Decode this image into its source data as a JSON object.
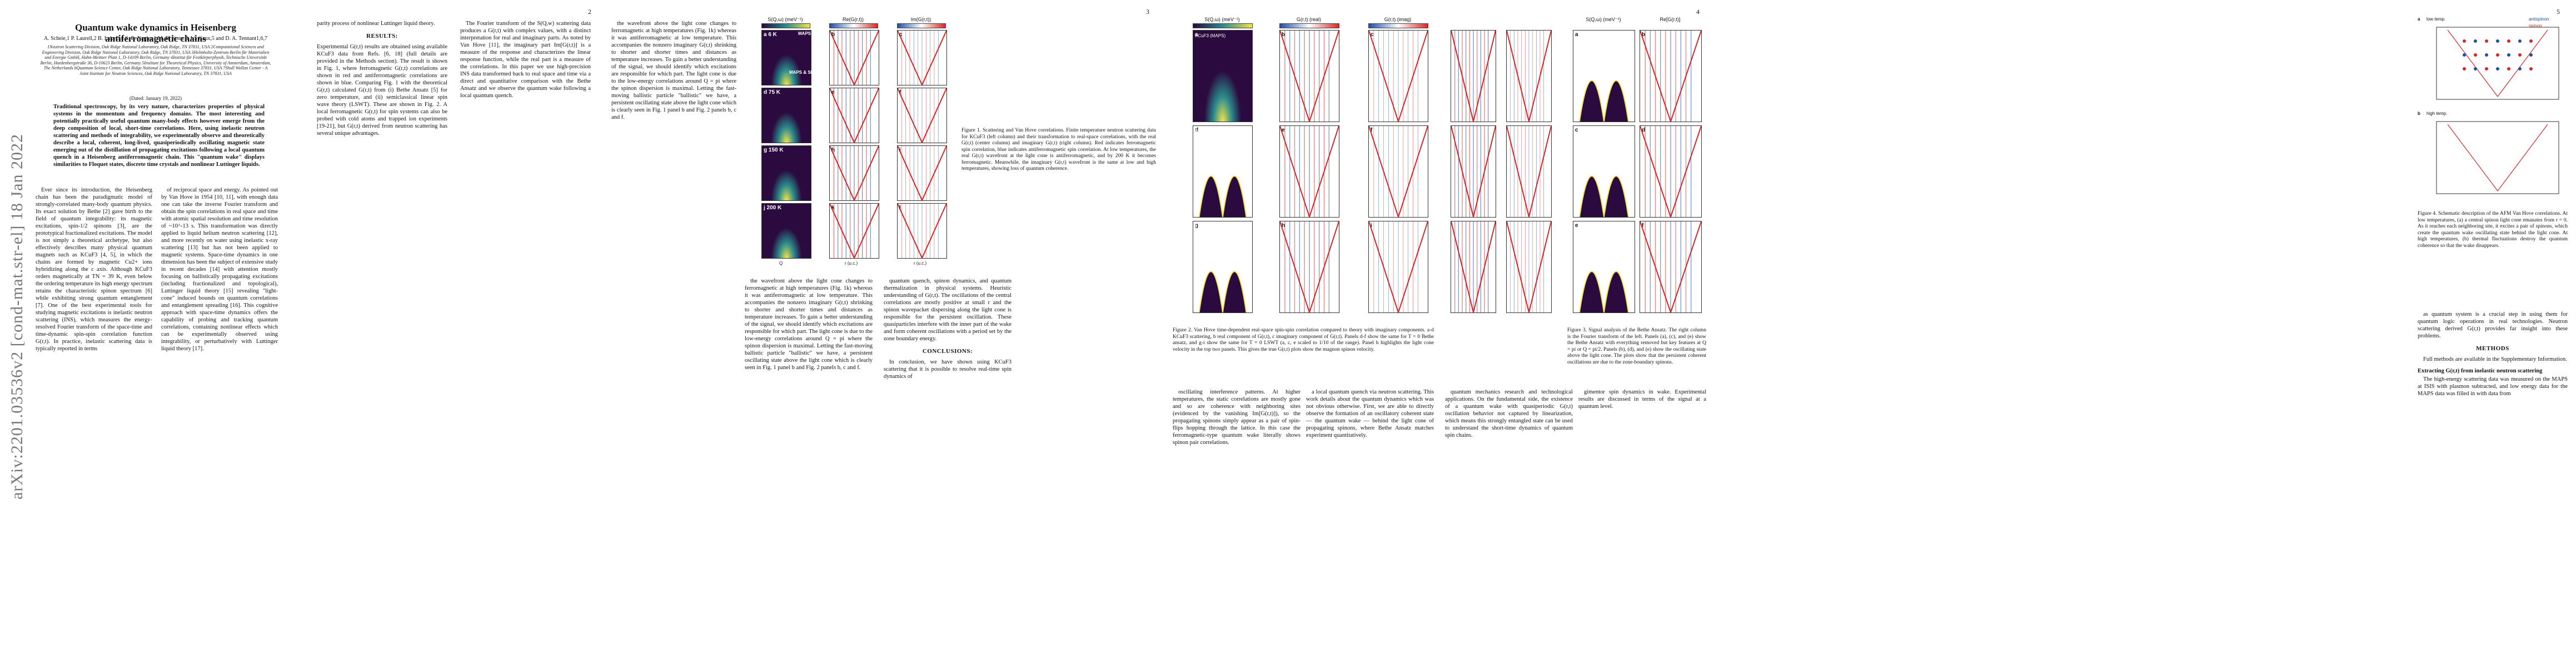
{
  "arxiv_id": "arXiv:2201.03536v2  [cond-mat.str-el]  18 Jan 2022",
  "page_numbers": [
    "2",
    "3",
    "4",
    "5"
  ],
  "title": "Quantum wake dynamics in Heisenberg antiferromagnetic chains",
  "authors": "A. Scheie,1 P. Laurell,2 B. Lake,3,4 S. E. Nagler,1 M. B. Stone,1 J-S Caux,5 and D. A. Tennant1,6,7",
  "affiliations": "1Neutron Scattering Division, Oak Ridge National Laboratory, Oak Ridge, TN 37831, USA 2Computational Sciences and Engineering Division, Oak Ridge National Laboratory, Oak Ridge, TN 37831, USA 3Helmholtz-Zentrum Berlin für Materialien und Energie GmbH, Hahn-Meitner Platz 1, D-14109 Berlin, Germany 4Institut für Festkörperphysik, Technische Universität Berlin, Hardenbergstraße 36, D-10623 Berlin, Germany 5Institute for Theoretical Physics, University of Amsterdam, Amsterdam, The Netherlands 6Quantum Science Center, Oak Ridge National Laboratory, Tennessee 37831, USA 7Shull Wollan Center - A Joint Institute for Neutron Sciences, Oak Ridge National Laboratory, TN 37831, USA",
  "dated": "(Dated: January 19, 2022)",
  "abstract": "Traditional spectroscopy, by its very nature, characterizes properties of physical systems in the momentum and frequency domains. The most interesting and potentially practically useful quantum many-body effects however emerge from the deep composition of local, short-time correlations. Here, using inelastic neutron scattering and methods of integrability, we experimentally observe and theoretically describe a local, coherent, long-lived, quasiperiodically oscillating magnetic state emerging out of the distillation of propagating excitations following a local quantum quench in a Heisenberg antiferromagnetic chain. This \"quantum wake\" displays similarities to Floquet states, discrete time crystals and nonlinear Luttinger liquids.",
  "p1_col1": "Ever since its introduction, the Heisenberg chain has been the paradigmatic model of strongly-correlated many-body quantum physics. Its exact solution by Bethe [2] gave birth to the field of quantum integrability: its magnetic excitations, spin-1/2 spinons [3], are the prototypical fractionalized excitations. The model is not simply a theoretical archetype, but also effectively describes many physical quantum magnets such as KCuF3 [4, 5], in which the chains are formed by magnetic Cu2+ ions hybridizing along the c axis. Although KCuF3 orders magnetically at TN = 39 K, even below the ordering temperature its high energy spectrum retains the characteristic spinon spectrum [6] while exhibiting strong quantum entanglement [7]. One of the best experimental tools for studying magnetic excitations is inelastic neutron scattering (INS), which measures the energy-resolved Fourier transform of the space-time and time-dynamic spin-spin correlation function G(r,t). In practice, inelastic scattering data is typically reported in terms",
  "p1_col2": "of reciprocal space and energy. As pointed out by Van Hove in 1954 [10, 11], with enough data one can take the inverse Fourier transform and obtain the spin correlations in real space and time with atomic spatial resolution and time resolution of ~10^-13 s. This transformation was directly applied to liquid helium neutron scattering [12], and more recently on water using inelastic x-ray scattering [13] but has not been applied to magnetic systems. Space-time dynamics in one dimension has been the subject of extensive study in recent decades [14] with attention mostly focusing on ballistically propagating excitations (including fractionalized and topological), Luttinger liquid theory [15] revealing \"light-cone\" induced bounds on quantum correlations and entanglement spreading [16]. This cognitive approach with space-time dynamics offers the capability of probing and tracking quantum correlations, containing nonlinear effects which can be experimentally observed using integrability, or perturbatively with Luttinger liquid theory [17].",
  "p2_col1": "parity process of nonlinear Luttinger liquid theory.",
  "p2_results": "RESULTS:",
  "p2_col1_body": "Experimental G(r,t) results are obtained using available KCuF3 data from Refs. [6, 18] (full details are provided in the Methods section). The result is shown in Fig. 1, where ferromagnetic G(r,t) correlations are shown in red and antiferromagnetic correlations are shown in blue. Comparing Fig. 1 with the theoretical G(r,t) calculated G(r,t) from (i) Bethe Ansatz [5] for zero temperature, and (ii) semiclassical linear spin wave theory (LSWT). These are shown in Fig. 2. A local ferromagnetic G(r,t) for spin systems can also be probed with cold atoms and trapped ion experiments [19-21], but G(r,t) derived from neutron scattering has several unique advantages.",
  "p2_col2_body": "The Fourier transform of the S(Q,w) scattering data produces a G(r,t) with complex values, with a distinct interpretation for real and imaginary parts. As noted by Van Hove [11], the imaginary part Im[G(r,t)] is a measure of the response and characterizes the linear response function, while the real part is a measure of the correlations. In this paper we use high-precision INS data transformed back to real space and time via a direct and quantitative comparison with the Bethe Ansatz and we observe the quantum wake following a local quantum quench.",
  "p3_col1": "the wavefront above the light cone changes to ferromagnetic at high temperatures (Fig. 1k) whereas it was antiferromagnetic at low temperature. This accompanies the nonzero imaginary G(r,t) shrinking to shorter and shorter times and distances as temperature increases. To gain a better understanding of the signal, we should identify which excitations are responsible for which part. The light cone is due to the low-energy correlations around Q = pi where the spinon dispersion is maximal. Letting the fast-moving ballistic particle \"ballistic\" we have, a persistent oscillating state above the light cone which is clearly seen in Fig. 1 panel b and Fig. 2 panels b, c and f.",
  "p3_col2": "quantum quench, spinon dynamics, and quantum thermalization in physical systems. Heuristic understanding of G(r,t). The oscillations of the central correlations are mostly positive at small r and the spinon wavepacket dispersing along the light cone is responsible for the persistent oscillation. These quasiparticles interfere with the inner part of the wake and form coherent oscillations with a period set by the zone boundary energy.",
  "p3_conclusions": "CONCLUSIONS:",
  "p3_concl_text": "In conclusion, we have shown using KCuF3 scattering that it is possible to resolve real-time spin dynamics of",
  "fig1_caption": "Figure 1. Scattering and Van Hove correlations. Finite temperature neutron scattering data for KCuF3 (left column) and their transformation to real-space correlations, with the real G(r,t) (center column) and imaginary G(r,t) (right column). Red indicates ferromagnetic spin correlation, blue indicates antiferromagnetic spin correlation. At low temperatures, the real G(r,t) wavefront at the light cone is antiferromagnetic, and by 200 K it becomes ferromagnetic. Meanwhile, the imaginary G(r,t) wavefront is the same at low and high temperatures, showing loss of quantum coherence.",
  "fig2_caption": "Figure 2. Van Hove time-dependent real-space spin-spin correlation compared to theory with imaginary components. a-d KCuF3 scattering, b real component of G(r,t), c imaginary component of G(r,t). Panels d-f show the same for T = 0 Bethe ansatz, and g-i show the same for T = 0 LSWT (a, c, e scaled to 1/10 of the range). Panel h highlights the light cone velocity in the top two panels. This gives the true G(r,t) plots show the magnon spinon velocity.",
  "fig3_caption": "Figure 3. Signal analysis of the Bethe Ansatz. The right column is the Fourier transform of the left. Panels (a), (c), and (e) show the Bethe Ansatz with everything removed but key features at Q = pi or Q = pi/2. Panels (b), (d), and (e) show the oscillating state above the light cone. The plots show that the persistent coherent oscillations are due to the zone-boundary spinons.",
  "fig4_caption": "Figure 4. Schematic description of the AFM Van Hove correlations. At low temperatures, (a) a central spinon light cone emanates from r = 0. As it reaches each neighboring site, it excites a pair of spinons, which create the quantum wake oscillating state behind the light cone. At high temperatures, (b) thermal fluctuations destroy the quantum coherence so that the wake disappears.",
  "p4_col2": "gimentor spin dynamics in wake. Experimental results are discussed in terms of the signal at a quantum level.",
  "p4_col_a": "oscillating interference patterns. At higher temperatures, the static correlations are mostly gone and so are coherence with neighboring sites (evidenced by the vanishing Im[G(r,t)]), so the propagating spinons simply appear as a pair of spin-flips hopping through the lattice. In this case the ferromagnetic-type quantum wake literally shows spinon pair correlations.",
  "p4_col_b": "a local quantum quench via neutron scattering. This work details about the quantum dynamics which was not obvious otherwise. First, we are able to directly observe the formation of an oscillatory coherent state — the quantum wake — behind the light cone of propagating spinons, where Bethe Ansatz matches experiment quantitatively.",
  "p4_col_c": "quantum mechanics research and technological applications. On the fundamental side, the existence of a quantum wake with quasiperiodic G(r,t) oscillation behavior not captured by linearization, which means this strongly entangled state can be used to understand the short-time dynamics of quantum spin chains.",
  "p5_col": "as quantum system is a crucial step in using them for quantum logic operations in real technologies. Neutron scattering derived G(r,t) provides far insight into these problems.",
  "p5_methods": "METHODS",
  "p5_methods_text": "Full methods are available in the Supplementary Information.",
  "p5_extracting": "Extracting G(r,t) from inelastic neutron scattering",
  "p5_extract_text": "The high-energy scattering data was measured on the MAPS at ISIS with plasmon subtracted, and low energy data for the MAPS data was filled in with data from",
  "fig1_headers": [
    "S(Q,ω) (meV⁻¹)",
    "Re(G(r,t))",
    "Im(G(r,t))"
  ],
  "fig1_rows": [
    "6 K",
    "75 K",
    "150 K",
    "200 K"
  ],
  "fig1_sublabels": [
    "MAPS",
    "MAPS & SEQ"
  ],
  "fig1_panel_letters": [
    "a",
    "b",
    "c",
    "d",
    "e",
    "f",
    "g",
    "h",
    "i",
    "j",
    "k",
    "l"
  ],
  "fig2_headers": [
    "S(Q,ω) (meV⁻¹)",
    "G(r,t) (real)",
    "G(r,t) (imag)"
  ],
  "fig2_rows": [
    "KCuF3 (MAPS)",
    "Bethe ansatz",
    "LSWT"
  ],
  "fig2_panel_letters": [
    "a",
    "b",
    "c",
    "d",
    "e",
    "f",
    "g",
    "h",
    "i"
  ],
  "fig3_headers": [
    "S(Q,ω) (meV⁻¹)",
    "Re[G(r,t)]"
  ],
  "fig3_panel_letters": [
    "a",
    "b",
    "c",
    "d",
    "e",
    "f"
  ],
  "fig4_panel_letters": [
    "a",
    "b"
  ],
  "fig4_labels": [
    "low temp.",
    "high temp."
  ],
  "fig4_legend": [
    "antispinon",
    "spinon"
  ],
  "axis_labels": {
    "energy": "ħω (meV)",
    "time": "t (fs)",
    "q": "Q",
    "r": "r (u.c.)"
  },
  "colors": {
    "hot": "#d62728",
    "cold": "#1f4fa8",
    "viridis_dark": "#2a0a3f",
    "viridis_mid": "#2a8a8c",
    "viridis_light": "#f2e44a"
  }
}
